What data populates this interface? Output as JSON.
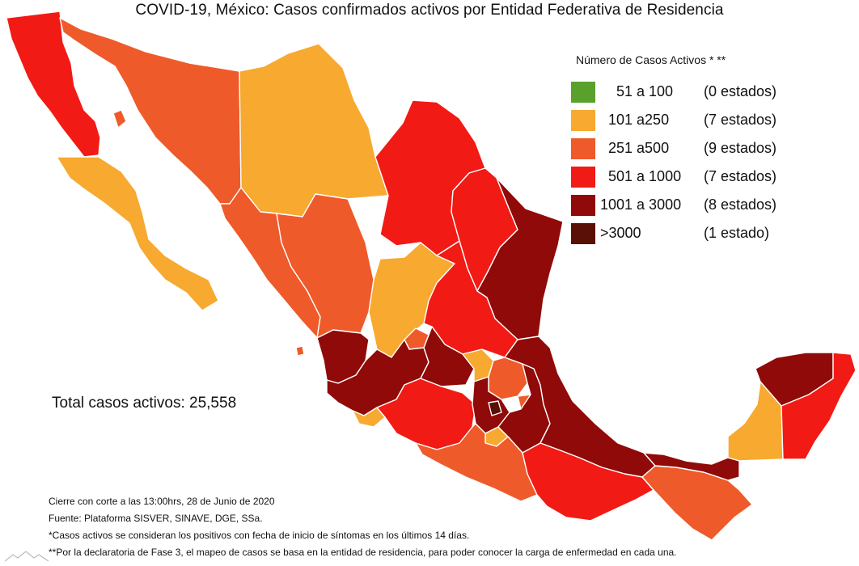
{
  "title": "COVID-19, México: Casos confirmados activos por Entidad Federativa de Residencia",
  "legend": {
    "title": "Número de Casos Activos * **",
    "items": [
      {
        "range": "51 a 100",
        "count": "(0 estados)",
        "color": "#5aa02c"
      },
      {
        "range": "101 a250",
        "count": "(7 estados)",
        "color": "#f7a930"
      },
      {
        "range": "251 a500",
        "count": "(9 estados)",
        "color": "#ef5a2a"
      },
      {
        "range": "501 a 1000",
        "count": "(7 estados)",
        "color": "#f21a14"
      },
      {
        "range": "1001 a 3000",
        "count": "(8 estados)",
        "color": "#8f0a08"
      },
      {
        "range": ">3000",
        "count": "(1 estado)",
        "color": "#5a1006"
      }
    ]
  },
  "total": "Total casos activos: 25,558",
  "notes": [
    "Cierre con corte a las 13:00hrs, 28 de Junio de 2020",
    "Fuente: Plataforma SISVER, SINAVE, DGE, SSa.",
    "*Casos activos se consideran los positivos con fecha de inicio de síntomas en los últimos 14 días.",
    "**Por la declaratoria de Fase 3, el mapeo de casos se basa en la entidad de residencia, para poder conocer la carga de enfermedad en cada una."
  ]
}
